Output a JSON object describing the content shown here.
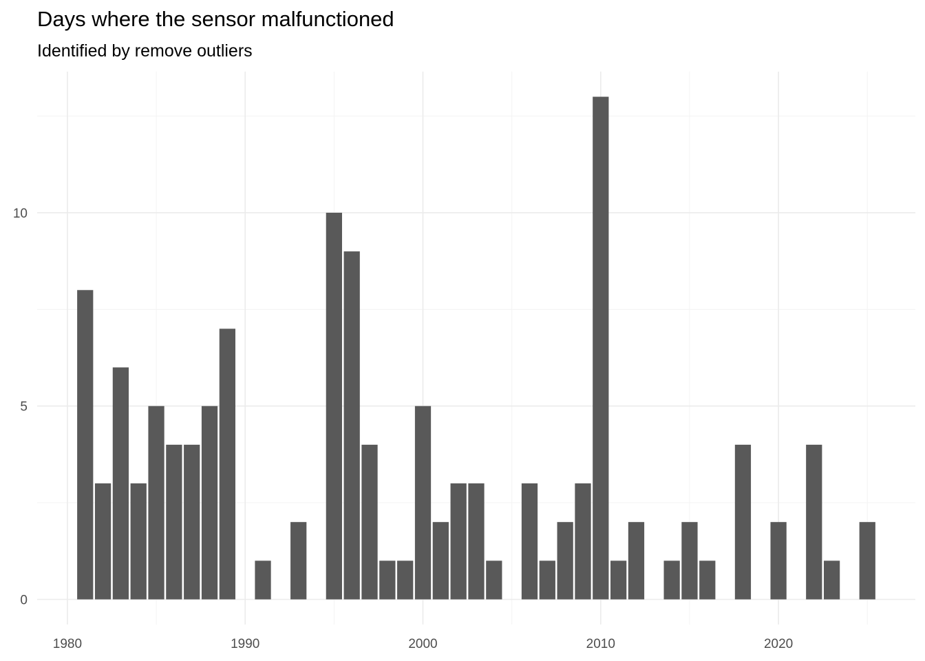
{
  "chart_data": {
    "type": "bar",
    "title": "Days where the sensor malfunctioned",
    "subtitle": "Identified by remove outliers",
    "xlabel": "",
    "ylabel": "",
    "x": [
      1981,
      1982,
      1983,
      1984,
      1985,
      1986,
      1987,
      1988,
      1989,
      1991,
      1993,
      1995,
      1996,
      1997,
      1998,
      1999,
      2000,
      2001,
      2002,
      2003,
      2004,
      2006,
      2007,
      2008,
      2009,
      2010,
      2011,
      2012,
      2014,
      2015,
      2016,
      2018,
      2020,
      2022,
      2023,
      2025
    ],
    "values": [
      8,
      3,
      6,
      3,
      5,
      4,
      4,
      5,
      7,
      1,
      2,
      10,
      9,
      4,
      1,
      1,
      5,
      2,
      3,
      3,
      1,
      3,
      1,
      2,
      3,
      13,
      1,
      2,
      1,
      2,
      1,
      4,
      2,
      4,
      1,
      2
    ],
    "xlim": [
      1978.3,
      2027.7
    ],
    "ylim": [
      -0.65,
      13.65
    ],
    "x_ticks": [
      1980,
      1990,
      2000,
      2010,
      2020
    ],
    "y_ticks": [
      0,
      5,
      10
    ],
    "grid": true,
    "legend": "none",
    "bar_color": "#595959"
  }
}
